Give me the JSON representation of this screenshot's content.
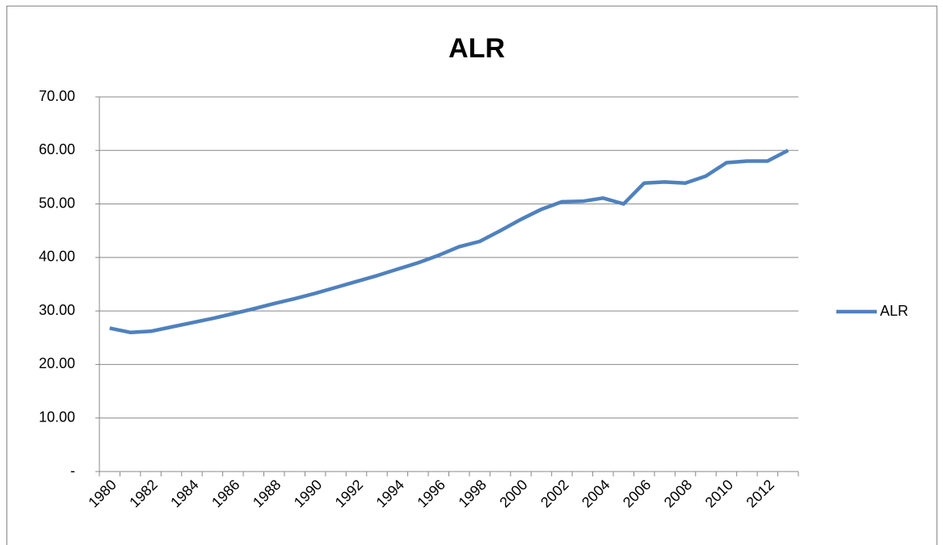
{
  "chart_data": {
    "type": "line",
    "title": "ALR",
    "categories": [
      "1980",
      null,
      "1982",
      null,
      "1984",
      null,
      "1986",
      null,
      "1988",
      null,
      "1990",
      null,
      "1992",
      null,
      "1994",
      null,
      "1996",
      null,
      "1998",
      null,
      "2000",
      null,
      "2002",
      null,
      "2004",
      null,
      "2006",
      null,
      "2008",
      null,
      "2010",
      null,
      "2012",
      null
    ],
    "series": [
      {
        "name": "ALR",
        "color": "#4f81bd",
        "values": [
          26.8,
          26.0,
          26.2,
          27.0,
          27.8,
          28.6,
          29.5,
          30.4,
          31.4,
          32.3,
          33.3,
          34.4,
          35.5,
          36.6,
          37.8,
          39.0,
          40.4,
          42.0,
          43.0,
          45.0,
          47.1,
          49.0,
          50.4,
          50.5,
          51.1,
          50.0,
          53.9,
          54.1,
          53.9,
          55.2,
          57.7,
          58.0,
          58.0,
          60.0
        ]
      }
    ],
    "ylim": [
      0,
      70
    ],
    "yticks": [
      {
        "value": 0,
        "label": "-"
      },
      {
        "value": 10,
        "label": "10.00"
      },
      {
        "value": 20,
        "label": "20.00"
      },
      {
        "value": 30,
        "label": "30.00"
      },
      {
        "value": 40,
        "label": "40.00"
      },
      {
        "value": 50,
        "label": "50.00"
      },
      {
        "value": 60,
        "label": "60.00"
      },
      {
        "value": 70,
        "label": "70.00"
      }
    ],
    "grid": true,
    "legend": "right"
  }
}
